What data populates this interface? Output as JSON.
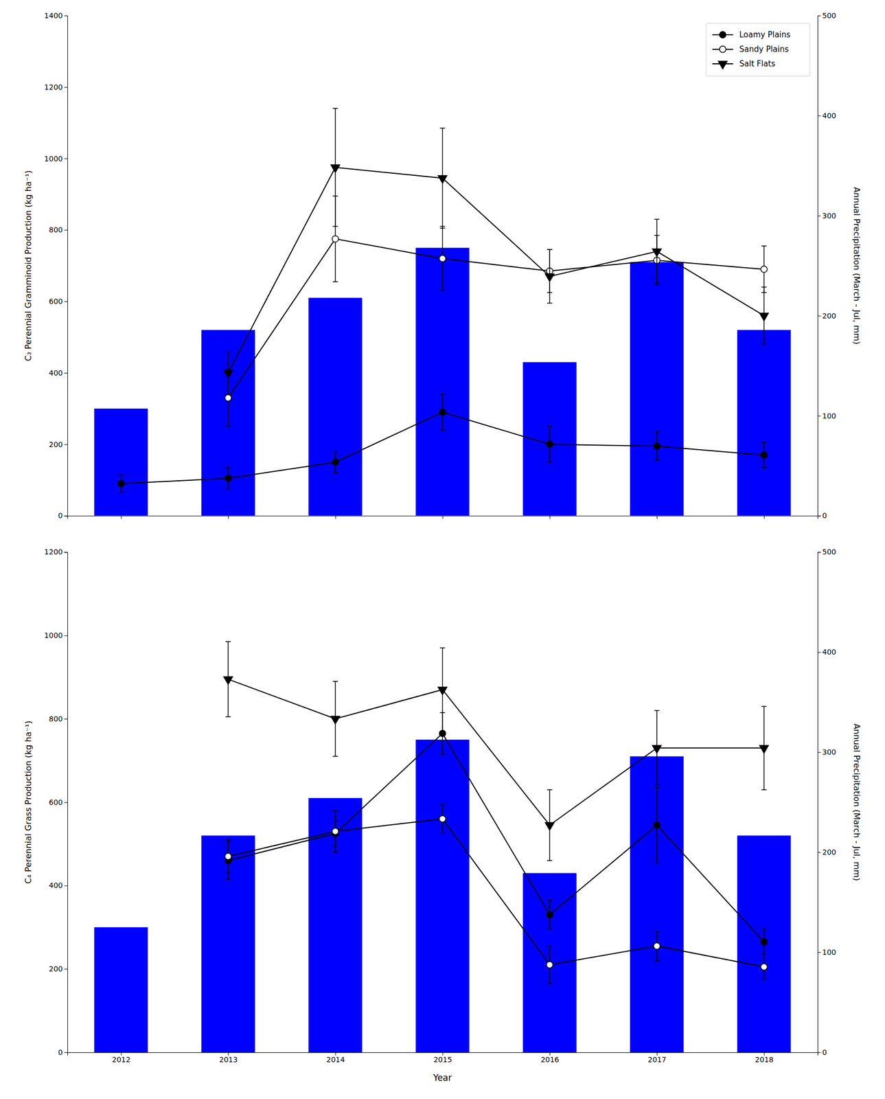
{
  "chart_data": [
    {
      "type": "line",
      "y_label": "C₃ Perennial Gramminoid Production (kg ha⁻¹)",
      "y2_label": "Annual Precipitation (March - Jul, mm)",
      "x": [
        2012,
        2013,
        2014,
        2015,
        2016,
        2017,
        2018
      ],
      "xlim": [
        2011.5,
        2018.5
      ],
      "xticks": [
        2012,
        2013,
        2014,
        2015,
        2016,
        2017,
        2018
      ],
      "ylim": [
        0,
        1400
      ],
      "yticks": [
        0,
        200,
        400,
        600,
        800,
        1000,
        1200,
        1400
      ],
      "y2lim": [
        0,
        500
      ],
      "y2ticks": [
        0,
        100,
        200,
        300,
        400,
        500
      ],
      "tick_labels": "y",
      "legend": "upper right",
      "grid": false,
      "series": [
        {
          "type": "bar",
          "color": "#0000FF",
          "values": [
            300,
            520,
            610,
            750,
            430,
            710,
            520
          ]
        },
        {
          "name": "Loamy Plains",
          "type": "line",
          "color": "black",
          "marker": "circle",
          "line_style": "solid",
          "values": [
            90,
            105,
            150,
            290,
            200,
            195,
            170
          ],
          "errors": [
            25,
            30,
            30,
            50,
            50,
            40,
            35
          ]
        },
        {
          "name": "Sandy Plains",
          "type": "line",
          "color": "black",
          "marker": "circle-open",
          "line_style": "solid",
          "values": [
            null,
            330,
            775,
            720,
            685,
            715,
            690
          ],
          "errors": [
            null,
            80,
            120,
            90,
            60,
            70,
            65
          ]
        },
        {
          "name": "Salt Flats",
          "type": "line",
          "color": "black",
          "marker": "triangle-down",
          "line_style": "solid",
          "values": [
            null,
            400,
            975,
            945,
            670,
            740,
            560
          ],
          "errors": [
            null,
            60,
            165,
            140,
            75,
            90,
            80
          ]
        }
      ]
    },
    {
      "type": "line",
      "x_label": "Year",
      "y_label": "C₄ Perennial Grass Production (kg ha⁻¹)",
      "y2_label": "Annual Precipitation (March - Jul, mm)",
      "x": [
        2012,
        2013,
        2014,
        2015,
        2016,
        2017,
        2018
      ],
      "xlim": [
        2011.5,
        2018.5
      ],
      "xticks": [
        2012,
        2013,
        2014,
        2015,
        2016,
        2017,
        2018
      ],
      "ylim": [
        0,
        1200
      ],
      "yticks": [
        0,
        200,
        400,
        600,
        800,
        1000,
        1200
      ],
      "y2lim": [
        0,
        500
      ],
      "y2ticks": [
        0,
        100,
        200,
        300,
        400,
        500
      ],
      "grid": false,
      "series": [
        {
          "type": "bar",
          "color": "#0000FF",
          "values": [
            300,
            520,
            610,
            750,
            430,
            710,
            520
          ]
        },
        {
          "name": "Loamy Plains",
          "type": "line",
          "color": "black",
          "marker": "circle",
          "line_style": "solid",
          "values": [
            null,
            460,
            525,
            765,
            330,
            545,
            265
          ],
          "errors": [
            null,
            45,
            30,
            50,
            35,
            90,
            30
          ]
        },
        {
          "name": "Sandy Plains",
          "type": "line",
          "color": "black",
          "marker": "circle-open",
          "line_style": "solid",
          "values": [
            null,
            470,
            530,
            560,
            210,
            255,
            205
          ],
          "errors": [
            null,
            40,
            50,
            35,
            45,
            35,
            30
          ]
        },
        {
          "name": "Salt Flats",
          "type": "line",
          "color": "black",
          "marker": "triangle-down",
          "line_style": "solid",
          "values": [
            null,
            895,
            800,
            870,
            545,
            730,
            730
          ],
          "errors": [
            null,
            90,
            90,
            100,
            85,
            90,
            100
          ]
        }
      ]
    }
  ]
}
